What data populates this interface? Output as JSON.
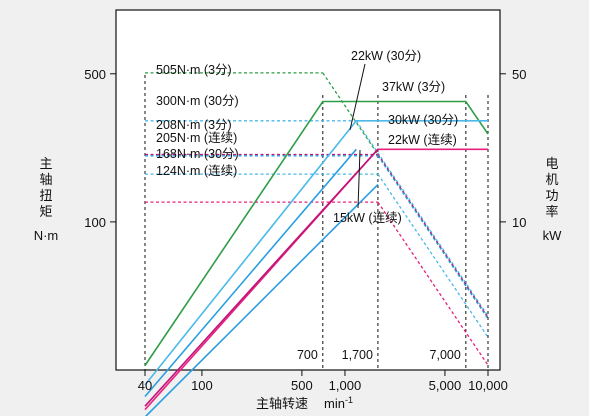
{
  "chart_data": {
    "type": "line",
    "xlabel": "主轴转速",
    "xunit_base": "min",
    "xunit_exp": "-1",
    "ylabel_left": [
      "主",
      "轴",
      "扭",
      "矩"
    ],
    "yunit_left": "N·m",
    "ylabel_right": [
      "电",
      "机",
      "功",
      "率"
    ],
    "yunit_right": "kW",
    "x_scale": "log",
    "y_scale": "log",
    "xlim": [
      40,
      10000
    ],
    "ylim_left": [
      20,
      1000
    ],
    "ylim_right": [
      2,
      100
    ],
    "xticks": [
      {
        "value": 40,
        "label": "40"
      },
      {
        "value": 100,
        "label": "100"
      },
      {
        "value": 500,
        "label": "500"
      },
      {
        "value": 1000,
        "label": "1,000"
      },
      {
        "value": 5000,
        "label": "5,000"
      },
      {
        "value": 10000,
        "label": "10,000"
      }
    ],
    "yticks_left": [
      {
        "value": 500,
        "label": "500"
      },
      {
        "value": 100,
        "label": "100"
      }
    ],
    "yticks_right": [
      {
        "value": 50,
        "label": "50"
      },
      {
        "value": 10,
        "label": "10"
      }
    ],
    "speed_markers": [
      {
        "value": 700,
        "label": "700"
      },
      {
        "value": 1700,
        "label": "1,700"
      },
      {
        "value": 7000,
        "label": "7,000"
      },
      {
        "value": 10000,
        "label": ""
      }
    ],
    "x_start_marker": 40,
    "colors": {
      "green": "#2e9e46",
      "blue": "#2a9fe0",
      "magenta": "#c0137a",
      "pink": "#e8207e",
      "lightblue": "#4cb8ea",
      "axis": "#111111"
    },
    "torque_curves": [
      {
        "label": "505N·m (3分)",
        "color": "green",
        "torque": 505,
        "x_end": 700,
        "power_end": 22
      },
      {
        "label": "300N·m (30分)",
        "color": "lightblue",
        "torque": 300,
        "x_end": 1200,
        "power_end": 15
      },
      {
        "label": "208N·m (3分)",
        "color": "magenta",
        "torque": 208,
        "x_end": 1700,
        "power_end": 12
      },
      {
        "label": "205N·m (连续)",
        "color": "blue",
        "torque": 205,
        "x_end": 1700,
        "power_end": 11
      },
      {
        "label": "168N·m (30分)",
        "color": "lightblue",
        "torque": 168,
        "x_end": 1700,
        "power_end": 10
      },
      {
        "label": "124N·m (连续)",
        "color": "pink",
        "torque": 124,
        "x_end": 1700,
        "power_end": 9
      }
    ],
    "power_curves": [
      {
        "label": "37kW (3分)",
        "color": "green",
        "points": [
          [
            40,
            2.1
          ],
          [
            700,
            37
          ],
          [
            7000,
            37
          ],
          [
            10000,
            26
          ]
        ]
      },
      {
        "label": "30kW (30分)",
        "color": "lightblue",
        "points": [
          [
            40,
            1.7
          ],
          [
            1200,
            30
          ],
          [
            10000,
            30
          ]
        ]
      },
      {
        "label": "22kW (连续)",
        "color": "pink",
        "points": [
          [
            40,
            1.3
          ],
          [
            1700,
            22
          ],
          [
            10000,
            22
          ]
        ]
      },
      {
        "label": "",
        "color": "magenta",
        "points": [
          [
            40,
            1.35
          ],
          [
            1700,
            22
          ]
        ]
      },
      {
        "label": "",
        "color": "blue",
        "points": [
          [
            40,
            1.5
          ],
          [
            1200,
            22
          ]
        ]
      },
      {
        "label": "",
        "color": "blue",
        "points": [
          [
            40,
            1.2
          ],
          [
            1700,
            15
          ]
        ]
      }
    ],
    "annotations": [
      {
        "text": "22kW (30分)"
      },
      {
        "text": "15kW (连续)"
      }
    ]
  }
}
